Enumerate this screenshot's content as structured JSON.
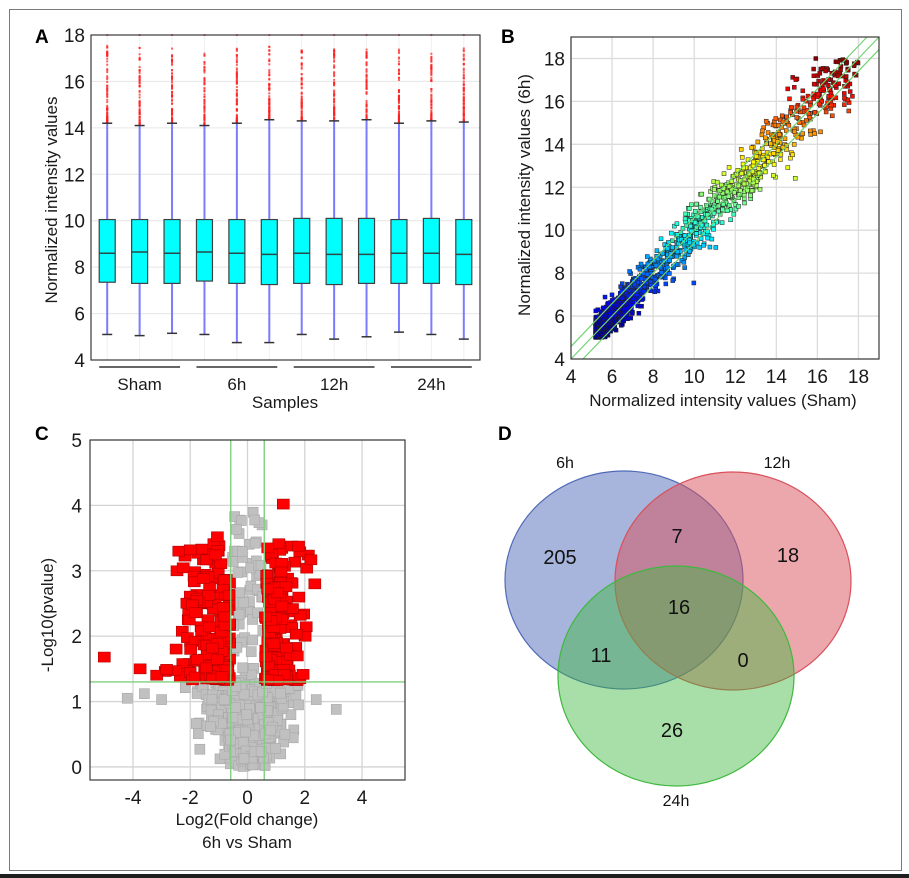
{
  "figure": {
    "panels": [
      "A",
      "B",
      "C",
      "D"
    ]
  },
  "chart_data": [
    {
      "panel": "A",
      "type": "box",
      "title": "",
      "xlabel": "Samples",
      "ylabel": "Normalized intensity values",
      "ylim": [
        4,
        18
      ],
      "yticks": [
        "4",
        "6",
        "8",
        "10",
        "12",
        "14",
        "16",
        "18"
      ],
      "groups": [
        {
          "label": "Sham",
          "boxes": [
            0,
            1,
            2
          ]
        },
        {
          "label": "6h",
          "boxes": [
            3,
            4,
            5
          ]
        },
        {
          "label": "12h",
          "boxes": [
            6,
            7,
            8
          ]
        },
        {
          "label": "24h",
          "boxes": [
            9,
            10,
            11
          ]
        }
      ],
      "boxes": [
        {
          "whisker_low": 5.1,
          "q1": 7.35,
          "median": 8.6,
          "q3": 10.05,
          "whisker_high": 14.2,
          "outlier_max": 17.5
        },
        {
          "whisker_low": 5.05,
          "q1": 7.3,
          "median": 8.65,
          "q3": 10.05,
          "whisker_high": 14.1,
          "outlier_max": 17.5
        },
        {
          "whisker_low": 5.15,
          "q1": 7.3,
          "median": 8.6,
          "q3": 10.05,
          "whisker_high": 14.2,
          "outlier_max": 17.4
        },
        {
          "whisker_low": 5.1,
          "q1": 7.4,
          "median": 8.65,
          "q3": 10.05,
          "whisker_high": 14.1,
          "outlier_max": 17.3
        },
        {
          "whisker_low": 4.75,
          "q1": 7.3,
          "median": 8.6,
          "q3": 10.05,
          "whisker_high": 14.2,
          "outlier_max": 17.4
        },
        {
          "whisker_low": 4.75,
          "q1": 7.25,
          "median": 8.55,
          "q3": 10.05,
          "whisker_high": 14.35,
          "outlier_max": 17.5
        },
        {
          "whisker_low": 5.1,
          "q1": 7.3,
          "median": 8.6,
          "q3": 10.1,
          "whisker_high": 14.3,
          "outlier_max": 17.4
        },
        {
          "whisker_low": 4.9,
          "q1": 7.25,
          "median": 8.55,
          "q3": 10.1,
          "whisker_high": 14.3,
          "outlier_max": 17.5
        },
        {
          "whisker_low": 5.0,
          "q1": 7.3,
          "median": 8.55,
          "q3": 10.1,
          "whisker_high": 14.35,
          "outlier_max": 17.4
        },
        {
          "whisker_low": 5.2,
          "q1": 7.3,
          "median": 8.6,
          "q3": 10.05,
          "whisker_high": 14.2,
          "outlier_max": 17.4
        },
        {
          "whisker_low": 5.1,
          "q1": 7.3,
          "median": 8.6,
          "q3": 10.1,
          "whisker_high": 14.3,
          "outlier_max": 17.4
        },
        {
          "whisker_low": 4.9,
          "q1": 7.25,
          "median": 8.55,
          "q3": 10.05,
          "whisker_high": 14.25,
          "outlier_max": 17.4
        }
      ],
      "colors": {
        "box": "#00ffff",
        "whisker": "#7b7bff",
        "outlier": "#ff2020",
        "median": "#2a4a4a"
      }
    },
    {
      "panel": "B",
      "type": "scatter",
      "title": "",
      "xlabel": "Normalized intensity values (Sham)",
      "ylabel": "Normalized intensity values (6h)",
      "xlim": [
        4,
        19
      ],
      "ylim": [
        4,
        19
      ],
      "xticks": [
        "4",
        "6",
        "8",
        "10",
        "12",
        "14",
        "16",
        "18"
      ],
      "yticks": [
        "4",
        "6",
        "8",
        "10",
        "12",
        "14",
        "16",
        "18"
      ],
      "grid": true,
      "reference_lines": [
        {
          "name": "upper fold-change 1.5",
          "offset_log2": 0.585
        },
        {
          "name": "identity",
          "offset_log2": 0
        },
        {
          "name": "lower fold-change 1.5",
          "offset_log2": -0.585
        }
      ],
      "point_cloud": {
        "x_range": [
          5.2,
          18.0
        ],
        "y_range": [
          5.0,
          18.0
        ],
        "colormap": "jet (blue=low, red=high)"
      },
      "line_color": "#6fd36f"
    },
    {
      "panel": "C",
      "type": "scatter",
      "subtype": "volcano",
      "title": "6h vs Sham",
      "xlabel": "Log2(Fold change)",
      "ylabel": "-Log10(pvalue)",
      "xlim": [
        -5.5,
        5.5
      ],
      "ylim": [
        -0.2,
        5
      ],
      "xticks": [
        "-4",
        "-2",
        "0",
        "2",
        "4"
      ],
      "yticks": [
        "0",
        "1",
        "2",
        "3",
        "4",
        "5"
      ],
      "grid": true,
      "thresholds": {
        "log2_fold_change": [
          -0.585,
          0.585
        ],
        "neg_log10_p": 1.3
      },
      "significant": {
        "color": "#ff0000",
        "x_range": [
          -5.0,
          2.4
        ],
        "y_range": [
          1.3,
          4.05
        ]
      },
      "not_significant": {
        "color": "#c0c0c0",
        "x_range": [
          -4.2,
          3.1
        ],
        "y_range": [
          0,
          3.9
        ]
      },
      "threshold_line_color": "#7fd07f"
    },
    {
      "panel": "D",
      "type": "venn",
      "sets": [
        "6h",
        "12h",
        "24h"
      ],
      "regions": [
        {
          "sets": [
            "6h"
          ],
          "value": "205"
        },
        {
          "sets": [
            "12h"
          ],
          "value": "18"
        },
        {
          "sets": [
            "24h"
          ],
          "value": "26"
        },
        {
          "sets": [
            "6h",
            "12h"
          ],
          "value": "7"
        },
        {
          "sets": [
            "6h",
            "24h"
          ],
          "value": "11"
        },
        {
          "sets": [
            "12h",
            "24h"
          ],
          "value": "0"
        },
        {
          "sets": [
            "6h",
            "12h",
            "24h"
          ],
          "value": "16"
        }
      ],
      "colors": {
        "6h": "#4f6ab8",
        "12h": "#d9505a",
        "24h": "#3fb83f"
      }
    }
  ]
}
